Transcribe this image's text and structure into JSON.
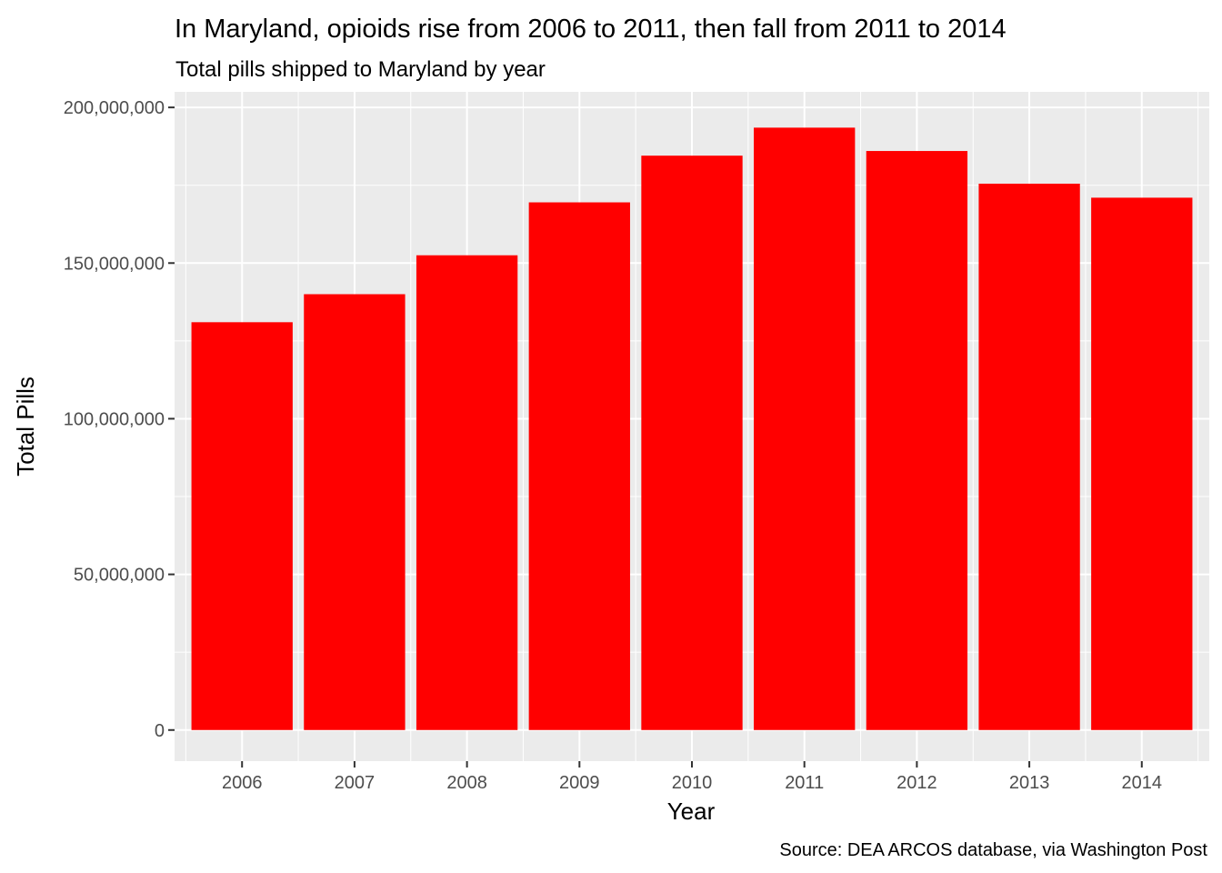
{
  "chart_data": {
    "type": "bar",
    "title": "In Maryland, opioids rise from 2006 to 2011, then fall from 2011 to 2014",
    "subtitle": "Total pills shipped to Maryland by year",
    "xlabel": "Year",
    "ylabel": "Total Pills",
    "caption": "Source: DEA ARCOS database, via Washington Post",
    "categories": [
      "2006",
      "2007",
      "2008",
      "2009",
      "2010",
      "2011",
      "2012",
      "2013",
      "2014"
    ],
    "values": [
      131000000,
      140000000,
      152500000,
      169500000,
      184500000,
      193500000,
      186000000,
      175500000,
      171000000
    ],
    "ylim": [
      -10000000,
      205000000
    ],
    "yticks": [
      0,
      50000000,
      100000000,
      150000000,
      200000000
    ],
    "ytick_labels": [
      "0",
      "50,000,000",
      "100,000,000",
      "150,000,000",
      "200,000,000"
    ],
    "grid": true,
    "bar_color": "#ff0000",
    "panel_color": "#ebebeb",
    "grid_color": "#ffffff"
  }
}
